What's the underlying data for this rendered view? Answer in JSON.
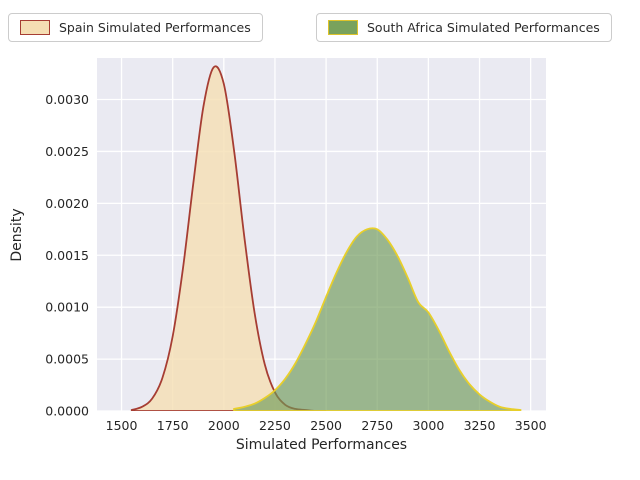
{
  "figure": {
    "background": "#ffffff",
    "plot_background": "#eaeaf2",
    "grid_color": "#ffffff",
    "tick_label_color": "#262626"
  },
  "legend": {
    "items": [
      {
        "label": "Spain Simulated Performances",
        "fill": "#f5deb3",
        "edge": "#a63d33"
      },
      {
        "label": "South Africa Simulated Performances",
        "fill": "#79a25c",
        "edge": "#dec32a"
      }
    ]
  },
  "chart_data": {
    "type": "area",
    "subtype": "kde-density",
    "title": "",
    "xlabel": "Simulated Performances",
    "ylabel": "Density",
    "xlim": [
      1380,
      3575
    ],
    "ylim": [
      0,
      0.0034
    ],
    "x_ticks": [
      1500,
      1750,
      2000,
      2250,
      2500,
      2750,
      3000,
      3250,
      3500
    ],
    "x_tick_labels": [
      "1500",
      "1750",
      "2000",
      "2250",
      "2500",
      "2750",
      "3000",
      "3250",
      "3500"
    ],
    "y_ticks": [
      0.0,
      0.0005,
      0.001,
      0.0015,
      0.002,
      0.0025,
      0.003
    ],
    "y_tick_labels": [
      "0.0000",
      "0.0005",
      "0.0010",
      "0.0015",
      "0.0020",
      "0.0025",
      "0.0030"
    ],
    "grid": true,
    "legend_position": "top-outside",
    "series": [
      {
        "name": "Spain Simulated Performances",
        "line_color": "#a63d33",
        "fill_color": "#f5deb3",
        "fill_opacity": 0.8,
        "x": [
          1550,
          1600,
          1650,
          1700,
          1750,
          1800,
          1850,
          1900,
          1950,
          2000,
          2050,
          2100,
          2150,
          2200,
          2250,
          2300,
          2350,
          2400,
          2450,
          2500
        ],
        "y": [
          1e-05,
          4e-05,
          0.00012,
          0.00032,
          0.00072,
          0.00137,
          0.00218,
          0.00293,
          0.00331,
          0.00315,
          0.00251,
          0.00168,
          0.00095,
          0.00045,
          0.00018,
          6e-05,
          2e-05,
          1e-05,
          0.0,
          0.0
        ]
      },
      {
        "name": "South Africa Simulated Performances",
        "line_color": "#e8cf2a",
        "fill_color": "#6f9a58",
        "fill_opacity": 0.65,
        "x": [
          2050,
          2100,
          2150,
          2200,
          2250,
          2300,
          2350,
          2400,
          2450,
          2500,
          2550,
          2600,
          2650,
          2700,
          2750,
          2800,
          2850,
          2900,
          2950,
          3000,
          3050,
          3100,
          3150,
          3200,
          3250,
          3300,
          3350,
          3400,
          3450
        ],
        "y": [
          2e-05,
          4e-05,
          7e-05,
          0.000125,
          0.0002,
          0.00031,
          0.00046,
          0.00065,
          0.00086,
          0.0011,
          0.00133,
          0.00153,
          0.00168,
          0.00175,
          0.00175,
          0.00165,
          0.00149,
          0.00128,
          0.00105,
          0.00095,
          0.00078,
          0.00058,
          0.0004,
          0.00026,
          0.00016,
          9e-05,
          4e-05,
          2e-05,
          1e-05
        ]
      }
    ]
  }
}
